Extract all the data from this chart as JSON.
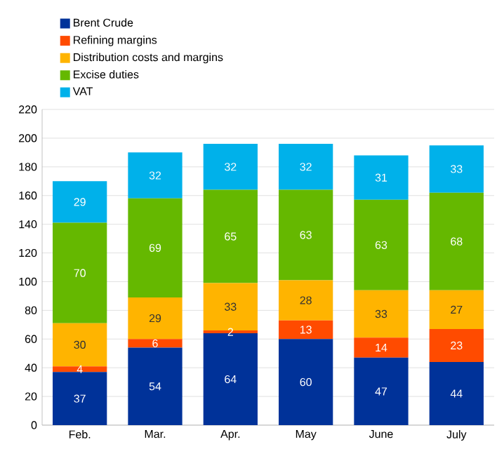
{
  "chart_data": {
    "type": "bar",
    "stacked": true,
    "data_labels": true,
    "grid": "y",
    "legend": "top left",
    "categories": [
      "Feb.",
      "Mar.",
      "Apr.",
      "May",
      "June",
      "July"
    ],
    "ylim": [
      0,
      220
    ],
    "yticks": [
      0,
      20,
      40,
      60,
      80,
      100,
      120,
      140,
      160,
      180,
      200,
      220
    ],
    "series": [
      {
        "name": "Brent Crude",
        "color": "#003299",
        "values": [
          37,
          54,
          64,
          60,
          47,
          44
        ]
      },
      {
        "name": "Refining margins",
        "color": "#ff4b00",
        "values": [
          4,
          6,
          2,
          13,
          14,
          23
        ]
      },
      {
        "name": "Distribution costs and margins",
        "color": "#ffb400",
        "values": [
          30,
          29,
          33,
          28,
          33,
          27
        ]
      },
      {
        "name": "Excise duties",
        "color": "#65b800",
        "values": [
          70,
          69,
          65,
          63,
          63,
          68
        ]
      },
      {
        "name": "VAT",
        "color": "#00b1ea",
        "values": [
          29,
          32,
          32,
          32,
          31,
          33
        ]
      }
    ]
  }
}
